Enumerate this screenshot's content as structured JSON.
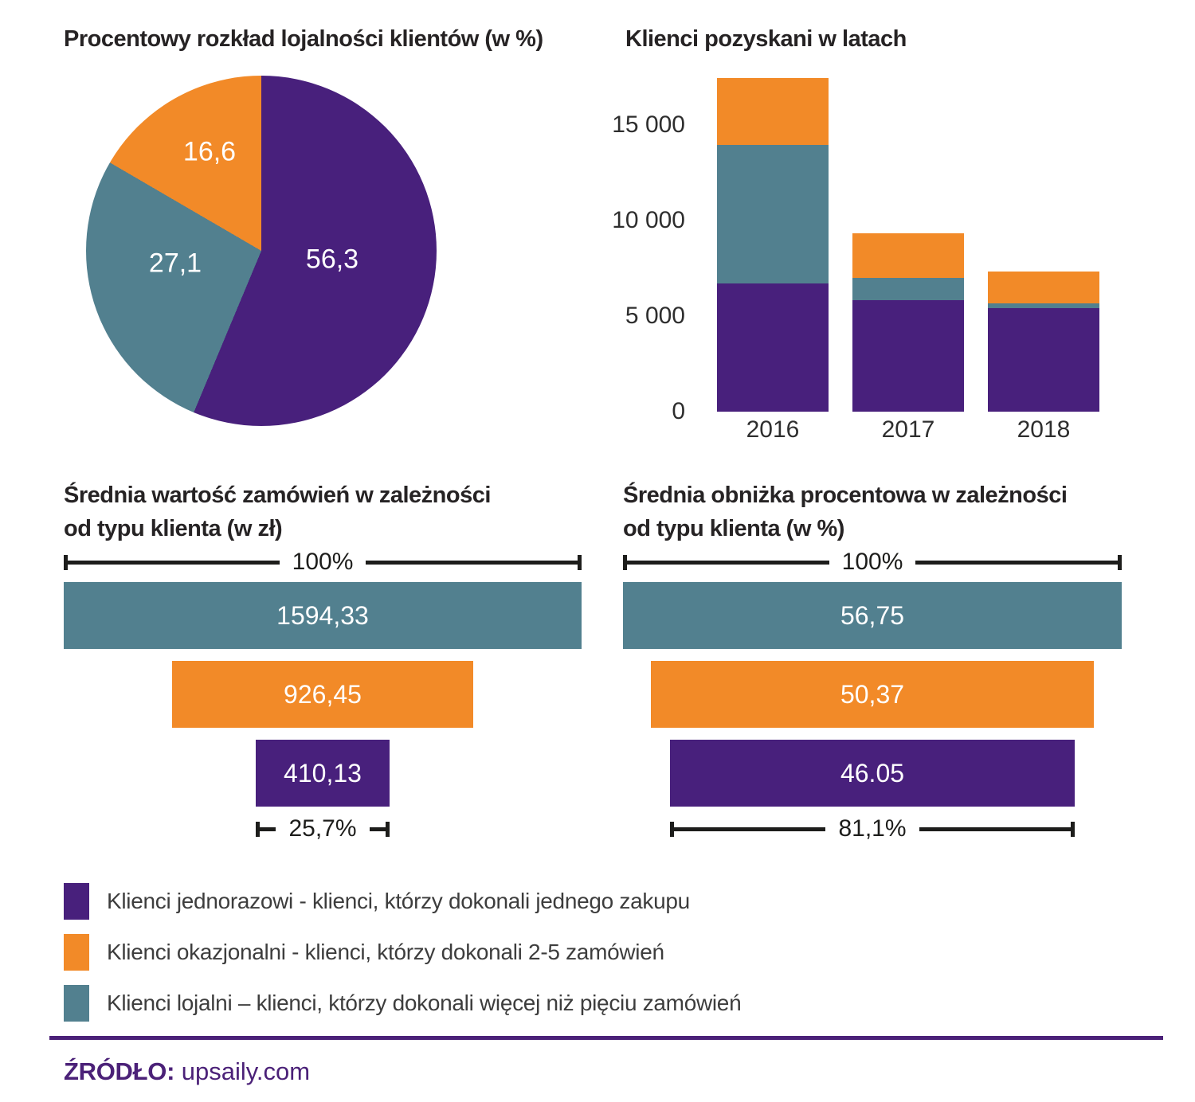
{
  "colors": {
    "purple": "#48207C",
    "teal": "#52808F",
    "orange": "#F28A28",
    "ink": "#262324",
    "footer_purple": "#4B2178"
  },
  "chart_data": [
    {
      "type": "pie",
      "title": "Procentowy rozkład lojalności klientów (w %)",
      "unit": "%",
      "labels": [
        "Klienci jednorazowi",
        "Klienci lojalni",
        "Klienci okazjonalni"
      ],
      "values": [
        56.3,
        27.1,
        16.6
      ],
      "display_values": [
        "56,3",
        "27,1",
        "16,6"
      ],
      "colors": [
        "purple",
        "teal",
        "orange"
      ],
      "start": "12 o'clock, clockwise"
    },
    {
      "type": "bar",
      "variant": "stacked",
      "title": "Klienci pozyskani w latach",
      "categories": [
        "2016",
        "2017",
        "2018"
      ],
      "series": [
        {
          "name": "Klienci jednorazowi",
          "color": "purple",
          "values": [
            6700,
            5850,
            5400
          ]
        },
        {
          "name": "Klienci lojalni",
          "color": "teal",
          "values": [
            7250,
            1150,
            280
          ]
        },
        {
          "name": "Klienci okazjonalni",
          "color": "orange",
          "values": [
            3500,
            2350,
            1650
          ]
        }
      ],
      "stack_order_bottom_to_top": [
        "purple",
        "teal",
        "orange"
      ],
      "ylim": [
        0,
        17500
      ],
      "yticks": [
        0,
        5000,
        10000,
        15000
      ],
      "ytick_labels": [
        "0",
        "5 000",
        "10 000",
        "15 000"
      ],
      "values_estimated_from_pixels": true,
      "grid": false,
      "legend_position": "shared bottom legend"
    },
    {
      "type": "bar",
      "variant": "horizontal-funnel",
      "title_line1": "Średnia wartość zamówień w zależności",
      "title_line2": "od typu klienta (w zł)",
      "unit": "zł",
      "top_bracket_label": "100%",
      "bottom_bracket_label": "25,7%",
      "bars": [
        {
          "name": "Klienci lojalni",
          "color": "teal",
          "display": "1594,33",
          "value": 1594.33
        },
        {
          "name": "Klienci okazjonalni",
          "color": "orange",
          "display": "926,45",
          "value": 926.45
        },
        {
          "name": "Klienci jednorazowi",
          "color": "purple",
          "display": "410,13",
          "value": 410.13
        }
      ]
    },
    {
      "type": "bar",
      "variant": "horizontal-funnel",
      "title_line1": "Średnia obniżka procentowa w zależności",
      "title_line2": "od typu klienta (w %)",
      "unit": "%",
      "top_bracket_label": "100%",
      "bottom_bracket_label": "81,1%",
      "bars": [
        {
          "name": "Klienci lojalni",
          "color": "teal",
          "display": "56,75",
          "value": 56.75
        },
        {
          "name": "Klienci okazjonalni",
          "color": "orange",
          "display": "50,37",
          "value": 50.37
        },
        {
          "name": "Klienci jednorazowi",
          "color": "purple",
          "display": "46.05",
          "value": 46.05
        }
      ]
    }
  ],
  "legend": {
    "items": [
      {
        "color": "purple",
        "label": "Klienci jednorazowi - klienci, którzy dokonali jednego zakupu"
      },
      {
        "color": "orange",
        "label": "Klienci okazjonalni - klienci, którzy dokonali 2-5 zamówień"
      },
      {
        "color": "teal",
        "label": "Klienci lojalni – klienci, którzy dokonali więcej niż pięciu zamówień"
      }
    ]
  },
  "footer": {
    "source_label": "ŹRÓDŁO:",
    "source_value": "upsaily.com"
  }
}
